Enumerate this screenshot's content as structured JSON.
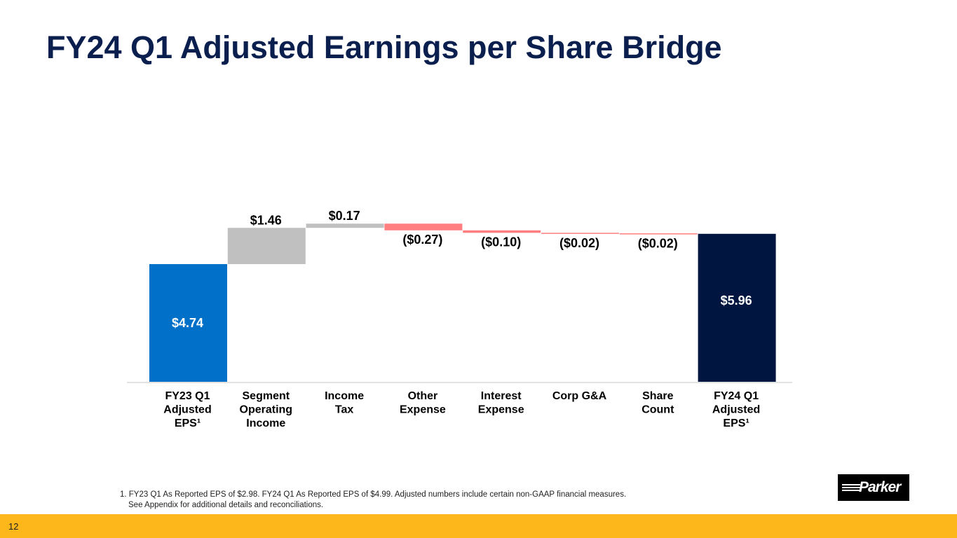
{
  "slide": {
    "title": "FY24 Q1 Adjusted Earnings per Share Bridge",
    "page_number": "12",
    "footnote_line1": "1. FY23 Q1 As Reported EPS of $2.98. FY24 Q1 As Reported EPS of $4.99.  Adjusted numbers include certain non-GAAP financial measures.",
    "footnote_line2": "See Appendix for additional details and reconciliations.",
    "logo_text": "Parker"
  },
  "colors": {
    "start": "#0070c8",
    "increase": "#c0c0c0",
    "decrease": "#ff7f80",
    "end": "#001640",
    "footer": "#fdb71a"
  },
  "chart_data": {
    "type": "bar",
    "subtype": "waterfall",
    "title": "",
    "categories": [
      [
        "FY23 Q1",
        "Adjusted",
        "EPS¹"
      ],
      [
        "Segment",
        "Operating",
        "Income"
      ],
      [
        "Income",
        "Tax"
      ],
      [
        "Other",
        "Expense"
      ],
      [
        "Interest",
        "Expense"
      ],
      [
        "Corp G&A"
      ],
      [
        "Share",
        "Count"
      ],
      [
        "FY24 Q1",
        "Adjusted",
        "EPS¹"
      ]
    ],
    "values": [
      4.74,
      1.46,
      0.17,
      -0.27,
      -0.1,
      -0.02,
      -0.02,
      5.96
    ],
    "kinds": [
      "total",
      "delta",
      "delta",
      "delta",
      "delta",
      "delta",
      "delta",
      "total"
    ],
    "labels": [
      "$4.74",
      "$1.46",
      "$0.17",
      "($0.27)",
      "($0.10)",
      "($0.02)",
      "($0.02)",
      "$5.96"
    ],
    "ylim": [
      0,
      7
    ],
    "grid": false,
    "legend": "none"
  }
}
